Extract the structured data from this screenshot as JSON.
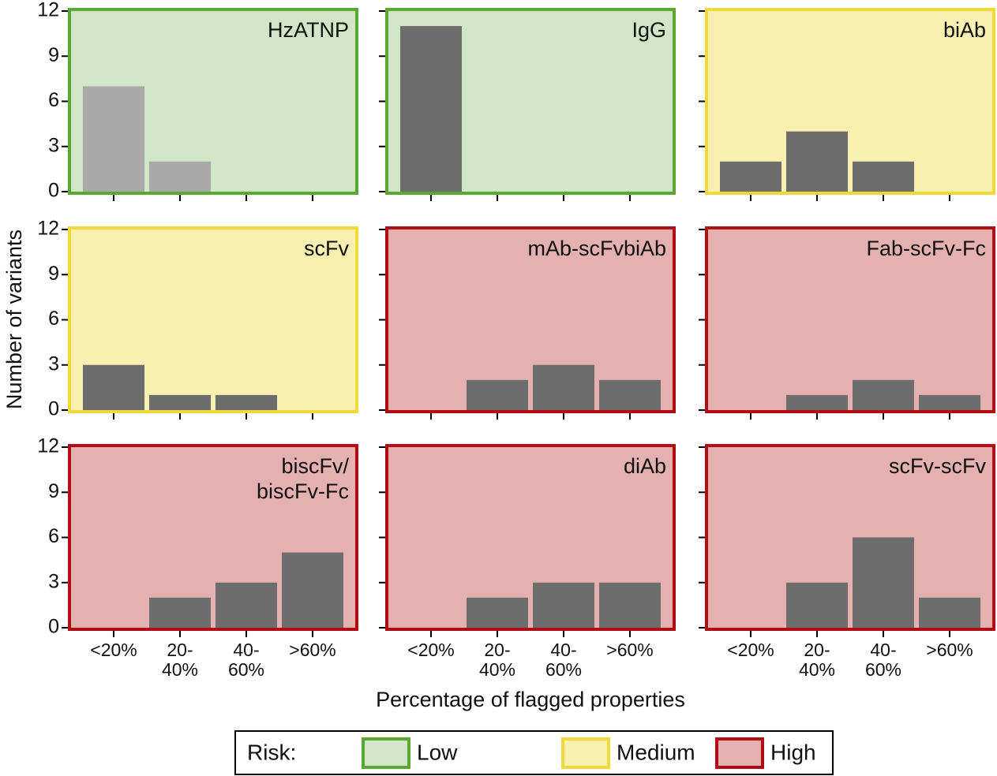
{
  "figure": {
    "y_label": "Number of variants",
    "x_label": "Percentage of flagged properties",
    "categories": [
      [
        "<20%"
      ],
      [
        "20-",
        "40%"
      ],
      [
        "40-",
        "60%"
      ],
      [
        ">60%"
      ]
    ],
    "legend": {
      "title": "Risk:",
      "entries": [
        {
          "name": "Low",
          "background": "#d0e6c6",
          "border": "#5aa832"
        },
        {
          "name": "Medium",
          "background": "#f8efb0",
          "border": "#f2d93a"
        },
        {
          "name": "High",
          "background": "#e5b0b0",
          "border": "#b00e14"
        }
      ]
    }
  },
  "chart_data": [
    {
      "type": "bar",
      "title_lines": [
        "HzATNP"
      ],
      "values": [
        7,
        2,
        0,
        0
      ],
      "color": "#a9a9a9",
      "background": "#d0e6c6",
      "border": "#5aa832",
      "ylim": [
        0,
        12
      ],
      "yticks": [
        0,
        3,
        6,
        9,
        12
      ],
      "show_yticklabels": true,
      "show_xticklabels": false
    },
    {
      "type": "bar",
      "title_lines": [
        "IgG"
      ],
      "values": [
        11,
        0,
        0,
        0
      ],
      "color": "#6d6d6d",
      "background": "#d0e6c6",
      "border": "#5aa832",
      "ylim": [
        0,
        12
      ],
      "yticks": [
        0,
        3,
        6,
        9,
        12
      ],
      "show_yticklabels": false,
      "show_xticklabels": false
    },
    {
      "type": "bar",
      "title_lines": [
        "biAb"
      ],
      "values": [
        2,
        4,
        2,
        0
      ],
      "color": "#6d6d6d",
      "background": "#f8efb0",
      "border": "#f2d93a",
      "ylim": [
        0,
        12
      ],
      "yticks": [
        0,
        3,
        6,
        9,
        12
      ],
      "show_yticklabels": false,
      "show_xticklabels": false
    },
    {
      "type": "bar",
      "title_lines": [
        "scFv"
      ],
      "values": [
        3,
        1,
        1,
        0
      ],
      "color": "#6d6d6d",
      "background": "#f8efb0",
      "border": "#f2d93a",
      "ylim": [
        0,
        12
      ],
      "yticks": [
        0,
        3,
        6,
        9,
        12
      ],
      "show_yticklabels": true,
      "show_xticklabels": false
    },
    {
      "type": "bar",
      "title_lines": [
        "mAb-scFvbiAb"
      ],
      "values": [
        0,
        2,
        3,
        2
      ],
      "color": "#6d6d6d",
      "background": "#e5b0b0",
      "border": "#b00e14",
      "ylim": [
        0,
        12
      ],
      "yticks": [
        0,
        3,
        6,
        9,
        12
      ],
      "show_yticklabels": false,
      "show_xticklabels": false
    },
    {
      "type": "bar",
      "title_lines": [
        "Fab-scFv-Fc"
      ],
      "values": [
        0,
        1,
        2,
        1
      ],
      "color": "#6d6d6d",
      "background": "#e5b0b0",
      "border": "#b00e14",
      "ylim": [
        0,
        12
      ],
      "yticks": [
        0,
        3,
        6,
        9,
        12
      ],
      "show_yticklabels": false,
      "show_xticklabels": false
    },
    {
      "type": "bar",
      "title_lines": [
        "biscFv/",
        "biscFv-Fc"
      ],
      "values": [
        0,
        2,
        3,
        5
      ],
      "color": "#6d6d6d",
      "background": "#e5b0b0",
      "border": "#b00e14",
      "ylim": [
        0,
        12
      ],
      "yticks": [
        0,
        3,
        6,
        9,
        12
      ],
      "show_yticklabels": true,
      "show_xticklabels": true
    },
    {
      "type": "bar",
      "title_lines": [
        "diAb"
      ],
      "values": [
        0,
        2,
        3,
        3
      ],
      "color": "#6d6d6d",
      "background": "#e5b0b0",
      "border": "#b00e14",
      "ylim": [
        0,
        12
      ],
      "yticks": [
        0,
        3,
        6,
        9,
        12
      ],
      "show_yticklabels": false,
      "show_xticklabels": true
    },
    {
      "type": "bar",
      "title_lines": [
        "scFv-scFv"
      ],
      "values": [
        0,
        3,
        6,
        2
      ],
      "color": "#6d6d6d",
      "background": "#e5b0b0",
      "border": "#b00e14",
      "ylim": [
        0,
        12
      ],
      "yticks": [
        0,
        3,
        6,
        9,
        12
      ],
      "show_yticklabels": false,
      "show_xticklabels": true
    }
  ]
}
